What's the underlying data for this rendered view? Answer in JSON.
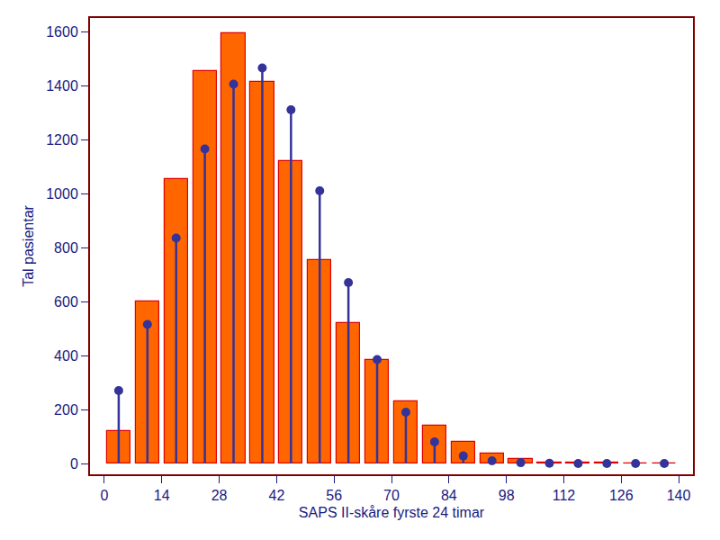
{
  "chart_data": {
    "type": "histogram",
    "x_label": "SAPS II-skåre fyrste 24 timar",
    "y_label": "Tal pasientar",
    "bins": [
      0,
      7,
      14,
      21,
      28,
      35,
      42,
      49,
      56,
      63,
      70,
      77,
      84,
      91,
      98,
      105,
      112,
      119,
      126,
      133,
      140
    ],
    "series": [
      {
        "type": "bar",
        "color": "#ff6600",
        "values": [
          120,
          600,
          1055,
          1455,
          1595,
          1415,
          1120,
          755,
          520,
          385,
          230,
          140,
          80,
          38,
          18,
          5,
          3,
          2,
          1,
          1
        ]
      },
      {
        "type": "stem",
        "color": "#333399",
        "marker": "circle",
        "values": [
          270,
          515,
          835,
          1165,
          1405,
          1465,
          1310,
          1010,
          670,
          385,
          190,
          80,
          28,
          10,
          3,
          1,
          0,
          0,
          0,
          0
        ]
      }
    ],
    "xlim": [
      -3.5,
      143.5
    ],
    "xticks": [
      0,
      14,
      28,
      42,
      56,
      70,
      84,
      98,
      112,
      126,
      140
    ],
    "ylim": [
      -40,
      1650
    ],
    "yticks": [
      0,
      200,
      400,
      600,
      800,
      1000,
      1200,
      1400,
      1600
    ],
    "grid": false
  }
}
